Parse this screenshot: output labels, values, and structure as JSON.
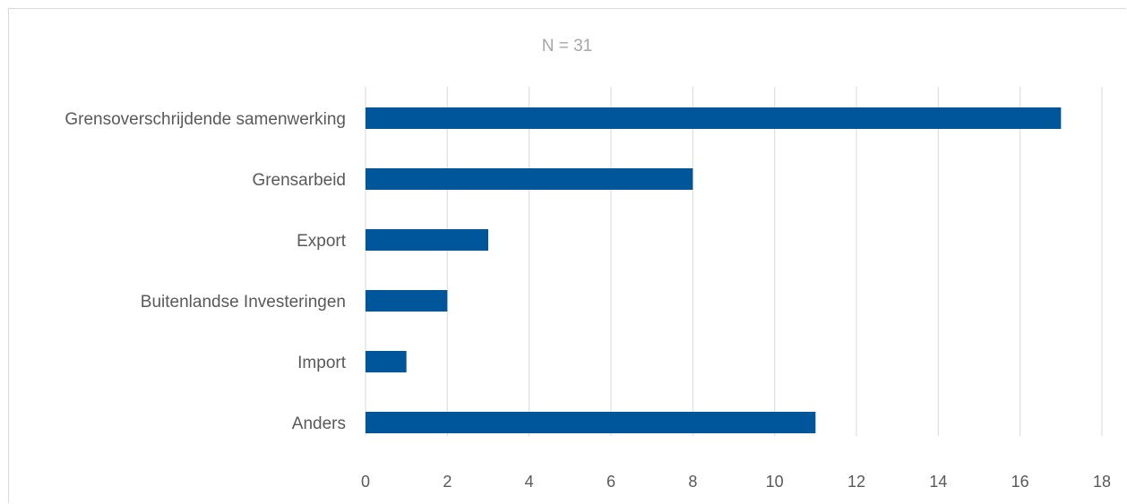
{
  "chart_data": {
    "type": "bar",
    "orientation": "horizontal",
    "title": "N = 31",
    "categories": [
      "Grensoverschrijdende samenwerking",
      "Grensarbeid",
      "Export",
      "Buitenlandse Investeringen",
      "Import",
      "Anders"
    ],
    "values": [
      17,
      8,
      3,
      2,
      1,
      11
    ],
    "xlim": [
      0,
      18
    ],
    "xticks": [
      0,
      2,
      4,
      6,
      8,
      10,
      12,
      14,
      16,
      18
    ],
    "grid": "vertical",
    "legend": "none",
    "bar_color": "#00569a"
  }
}
